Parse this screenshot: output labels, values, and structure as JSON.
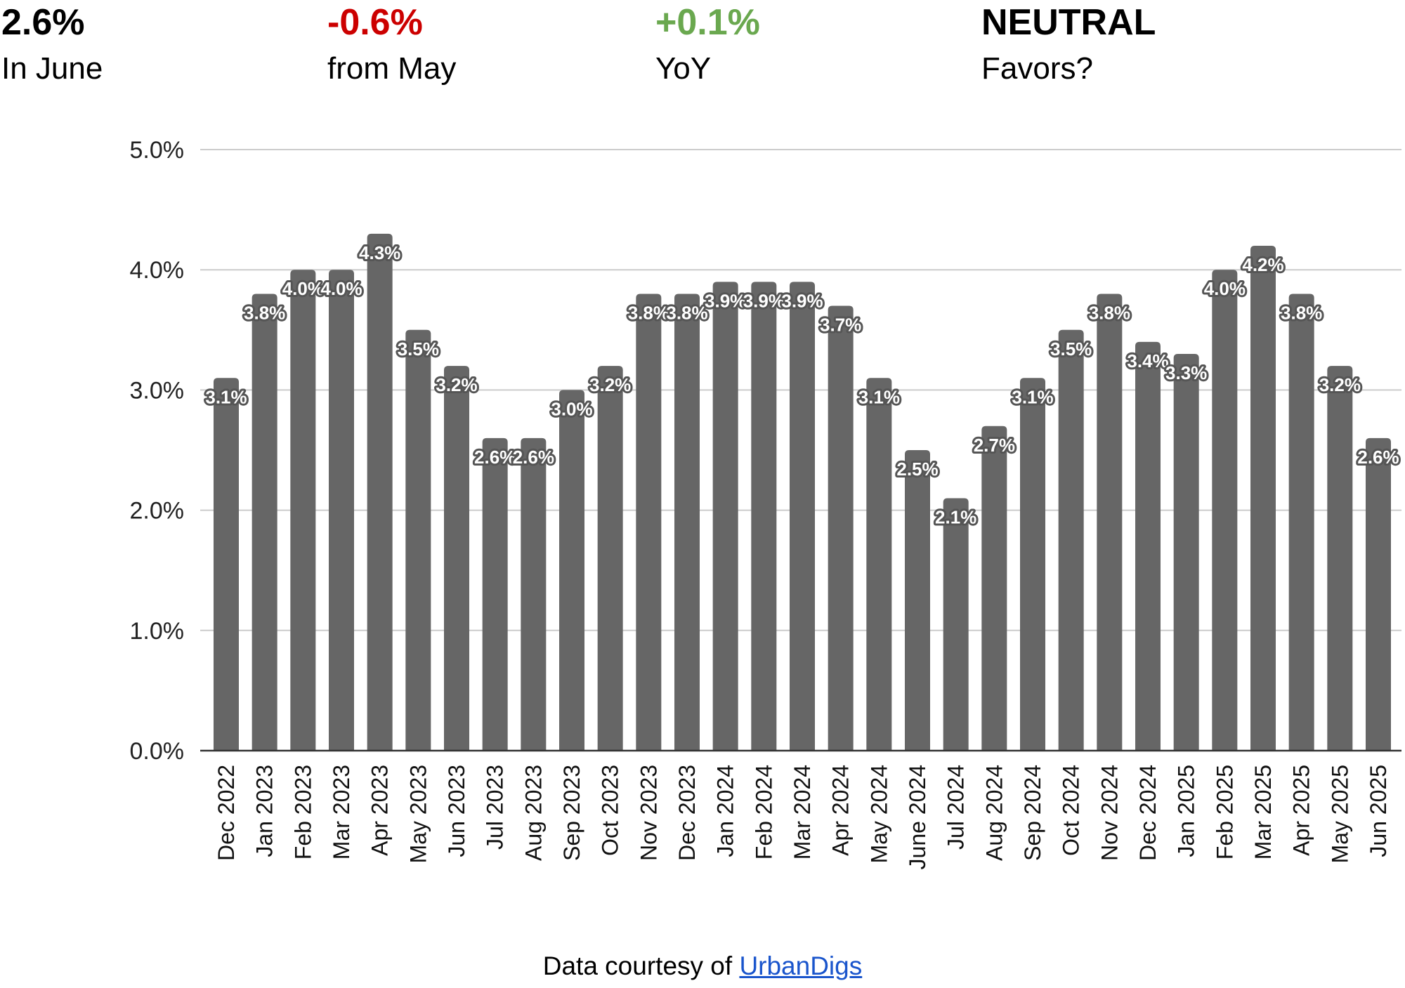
{
  "kpis": [
    {
      "value": "2.6%",
      "label": "In June",
      "color": "#000000"
    },
    {
      "value": "-0.6%",
      "label": "from May",
      "color": "#cc0000"
    },
    {
      "value": "+0.1%",
      "label": "YoY",
      "color": "#6aa84f"
    },
    {
      "value": "NEUTRAL",
      "label": "Favors?",
      "color": "#000000"
    }
  ],
  "footer": {
    "prefix": "Data courtesy of ",
    "link_text": "UrbanDigs",
    "link_color": "#1a55cc"
  },
  "chart_data": {
    "type": "bar",
    "title": "",
    "xlabel": "",
    "ylabel": "",
    "ylim": [
      0,
      5
    ],
    "yticks": [
      "0.0%",
      "1.0%",
      "2.0%",
      "3.0%",
      "4.0%",
      "5.0%"
    ],
    "grid": true,
    "bar_color": "#666666",
    "categories": [
      "Dec 2022",
      "Jan 2023",
      "Feb 2023",
      "Mar 2023",
      "Apr 2023",
      "May 2023",
      "Jun 2023",
      "Jul 2023",
      "Aug 2023",
      "Sep 2023",
      "Oct 2023",
      "Nov 2023",
      "Dec 2023",
      "Jan 2024",
      "Feb 2024",
      "Mar 2024",
      "Apr 2024",
      "May 2024",
      "June 2024",
      "Jul 2024",
      "Aug 2024",
      "Sep 2024",
      "Oct 2024",
      "Nov 2024",
      "Dec 2024",
      "Jan 2025",
      "Feb 2025",
      "Mar 2025",
      "Apr 2025",
      "May 2025",
      "Jun 2025"
    ],
    "values": [
      3.1,
      3.8,
      4.0,
      4.0,
      4.3,
      3.5,
      3.2,
      2.6,
      2.6,
      3.0,
      3.2,
      3.8,
      3.8,
      3.9,
      3.9,
      3.9,
      3.7,
      3.1,
      2.5,
      2.1,
      2.7,
      3.1,
      3.5,
      3.8,
      3.4,
      3.3,
      4.0,
      4.2,
      3.8,
      3.2,
      2.6
    ],
    "data_labels": [
      "3.1%",
      "3.8%",
      "4.0%",
      "4.0%",
      "4.3%",
      "3.5%",
      "3.2%",
      "2.6%",
      "2.6%",
      "3.0%",
      "3.2%",
      "3.8%",
      "3.8%",
      "3.9%",
      "3.9%",
      "3.9%",
      "3.7%",
      "3.1%",
      "2.5%",
      "2.1%",
      "2.7%",
      "3.1%",
      "3.5%",
      "3.8%",
      "3.4%",
      "3.3%",
      "4.0%",
      "4.2%",
      "3.8%",
      "3.2%",
      "2.6%"
    ]
  }
}
